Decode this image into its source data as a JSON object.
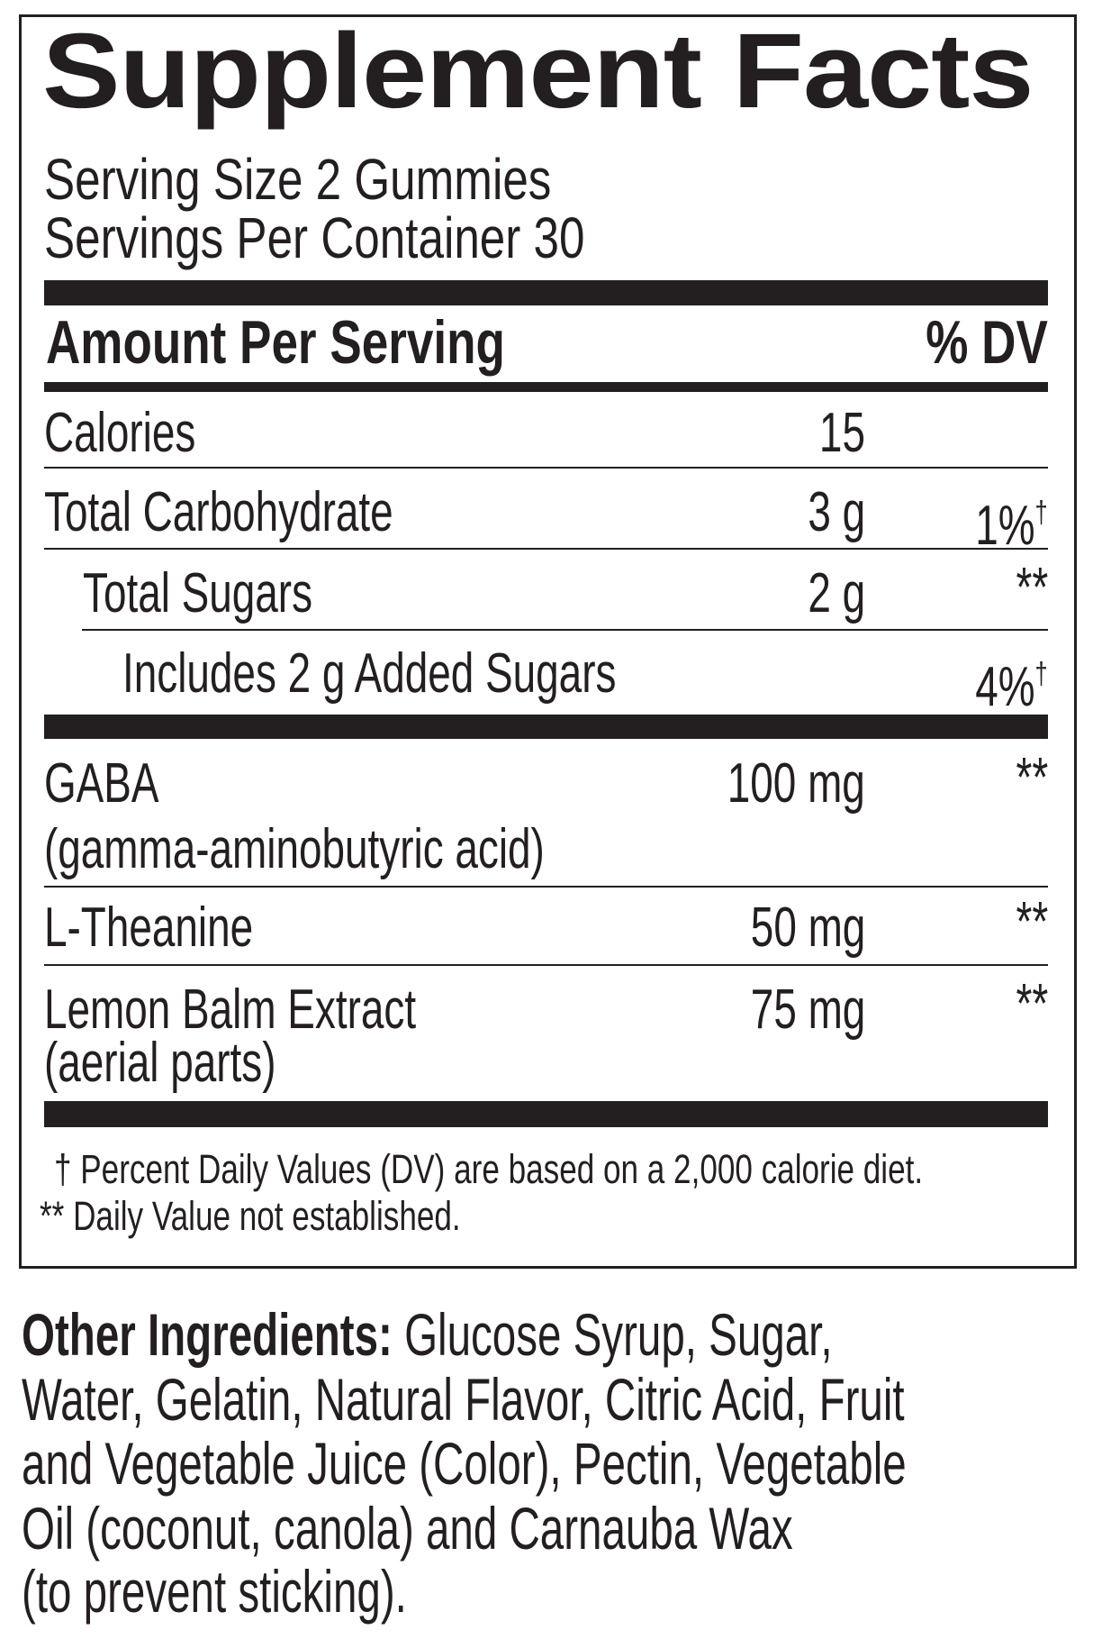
{
  "title": "Supplement Facts",
  "serving_size": "Serving Size 2 Gummies",
  "servings_per_container": "Servings Per Container 30",
  "header": {
    "amount": "Amount Per Serving",
    "dv": "% DV"
  },
  "rows": [
    {
      "name": "Calories",
      "amount": "15",
      "dv": ""
    },
    {
      "name": "Total Carbohydrate",
      "amount": "3 g",
      "dv": "1%",
      "dv_mark": "†"
    },
    {
      "name": "Total Sugars",
      "amount": "2 g",
      "dv": "**"
    },
    {
      "name": "Includes 2 g Added Sugars",
      "amount": "",
      "dv": "4%",
      "dv_mark": "†"
    },
    {
      "name": "GABA",
      "subname": "(gamma-aminobutyric acid)",
      "amount": "100 mg",
      "dv": "**"
    },
    {
      "name": "L-Theanine",
      "amount": "50 mg",
      "dv": "**"
    },
    {
      "name": "Lemon Balm Extract",
      "subname": "(aerial parts)",
      "amount": "75 mg",
      "dv": "**"
    }
  ],
  "footnotes": [
    "† Percent Daily Values (DV) are based on a 2,000 calorie diet.",
    "** Daily Value not established."
  ],
  "other_ingredients": {
    "label": "Other Ingredients:",
    "lines": [
      " Glucose Syrup, Sugar,",
      "Water, Gelatin, Natural Flavor, Citric Acid, Fruit",
      "and Vegetable Juice (Color), Pectin, Vegetable",
      "Oil (coconut, canola) and Carnauba Wax",
      "(to prevent sticking)."
    ]
  }
}
